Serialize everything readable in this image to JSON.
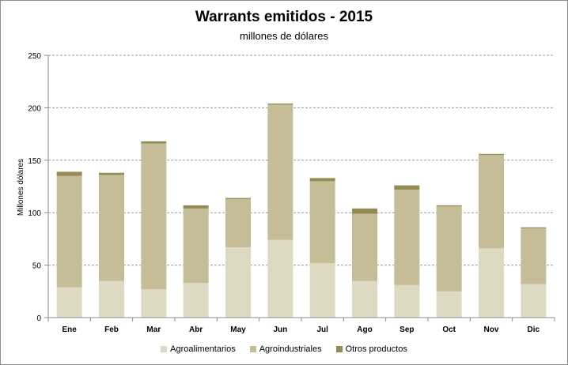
{
  "chart_data": {
    "type": "bar",
    "stacked": true,
    "title": "Warrants  emitidos  - 2015",
    "subtitle": "millones de dólares",
    "xlabel": "",
    "ylabel": "Millones dólares",
    "ylim": [
      0,
      250
    ],
    "yticks": [
      0,
      50,
      100,
      150,
      200,
      250
    ],
    "grid": "horizontal-dashed",
    "legend_position": "bottom",
    "categories": [
      "Ene",
      "Feb",
      "Mar",
      "Abr",
      "May",
      "Jun",
      "Jul",
      "Ago",
      "Sep",
      "Oct",
      "Nov",
      "Dic"
    ],
    "series": [
      {
        "name": "Agroalimentarios",
        "color": "#ddd9c3",
        "values": [
          29,
          35,
          27,
          33,
          67,
          74,
          52,
          35,
          31,
          25,
          66,
          32
        ]
      },
      {
        "name": "Agroindustriales",
        "color": "#c4bd97",
        "values": [
          106,
          101,
          139,
          71,
          46,
          129,
          78,
          64,
          91,
          81,
          89,
          53
        ]
      },
      {
        "name": "Otros productos",
        "color": "#948a54",
        "values": [
          4,
          2,
          2,
          3,
          1,
          1,
          3,
          5,
          4,
          1,
          1,
          1
        ]
      }
    ]
  }
}
